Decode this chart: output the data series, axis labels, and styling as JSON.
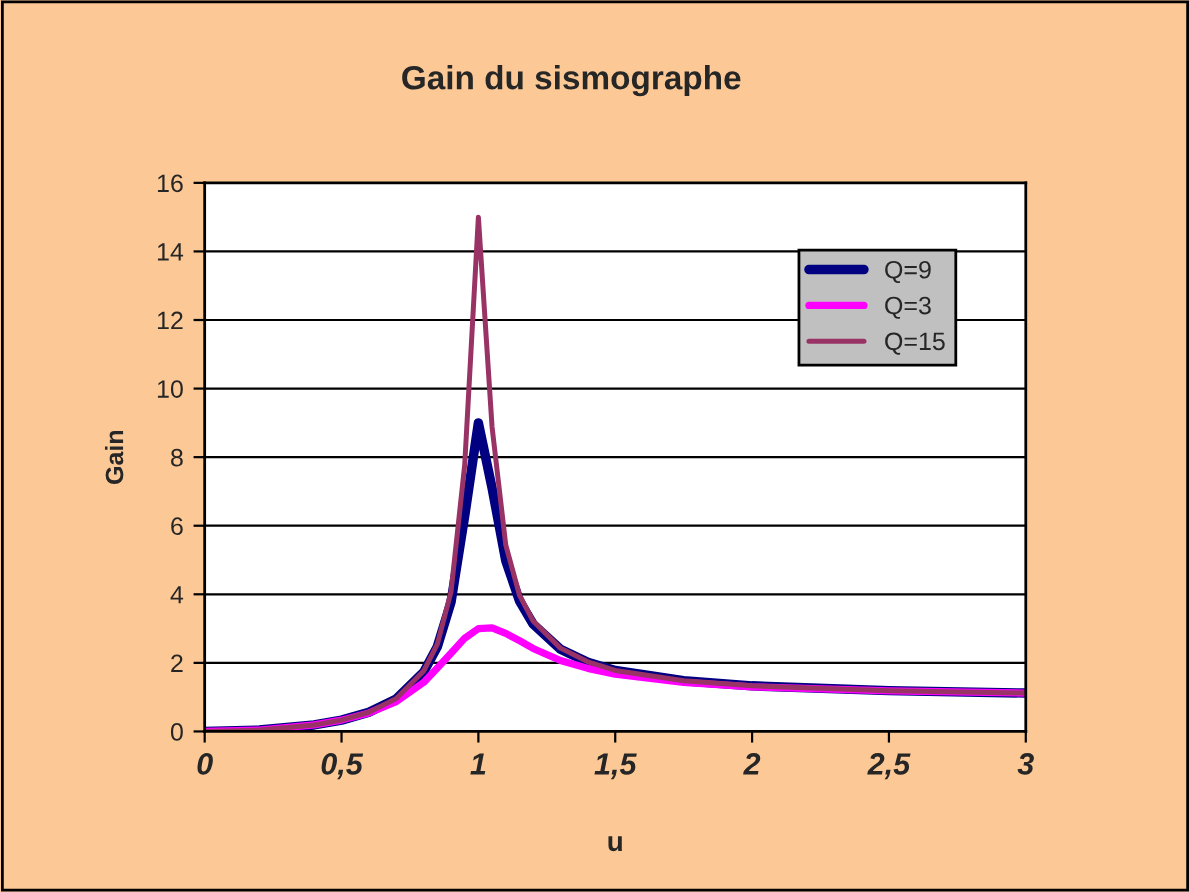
{
  "chart_data": {
    "type": "line",
    "title": "Gain du sismographe",
    "xlabel": "u",
    "ylabel": "Gain",
    "x": [
      0,
      0.2,
      0.4,
      0.5,
      0.6,
      0.7,
      0.8,
      0.85,
      0.9,
      0.95,
      1.0,
      1.05,
      1.1,
      1.15,
      1.2,
      1.3,
      1.4,
      1.5,
      1.75,
      2,
      2.5,
      3
    ],
    "series": [
      {
        "name": "Q=9",
        "color": "#000080",
        "values": [
          0,
          0.04,
          0.19,
          0.33,
          0.56,
          0.95,
          1.73,
          2.47,
          3.77,
          6.28,
          9,
          7.1,
          4.98,
          3.81,
          3.13,
          2.4,
          2.02,
          1.78,
          1.48,
          1.33,
          1.19,
          1.12
        ]
      },
      {
        "name": "Q=3",
        "color": "#ff00ff",
        "values": [
          0,
          0.04,
          0.19,
          0.33,
          0.54,
          0.87,
          1.43,
          1.85,
          2.28,
          2.72,
          3.0,
          3.02,
          2.86,
          2.65,
          2.42,
          2.07,
          1.84,
          1.67,
          1.43,
          1.3,
          1.18,
          1.12
        ]
      },
      {
        "name": "Q=15",
        "color": "#993366",
        "values": [
          0,
          0.04,
          0.19,
          0.33,
          0.56,
          0.96,
          1.76,
          2.55,
          4.07,
          7.77,
          15,
          8.88,
          5.44,
          3.98,
          3.22,
          2.43,
          2.03,
          1.78,
          1.48,
          1.33,
          1.19,
          1.12
        ]
      }
    ],
    "xlim": [
      0,
      3
    ],
    "xticks": [
      {
        "value": 0,
        "label": "0"
      },
      {
        "value": 0.5,
        "label": "0,5"
      },
      {
        "value": 1,
        "label": "1"
      },
      {
        "value": 1.5,
        "label": "1,5"
      },
      {
        "value": 2,
        "label": "2"
      },
      {
        "value": 2.5,
        "label": "2,5"
      },
      {
        "value": 3,
        "label": "3"
      }
    ],
    "ylim": [
      0,
      16
    ],
    "yticks": [
      0,
      2,
      4,
      6,
      8,
      10,
      12,
      14,
      16
    ],
    "grid": "y",
    "legend": "top right",
    "marker": "none",
    "line_style": "solid"
  }
}
